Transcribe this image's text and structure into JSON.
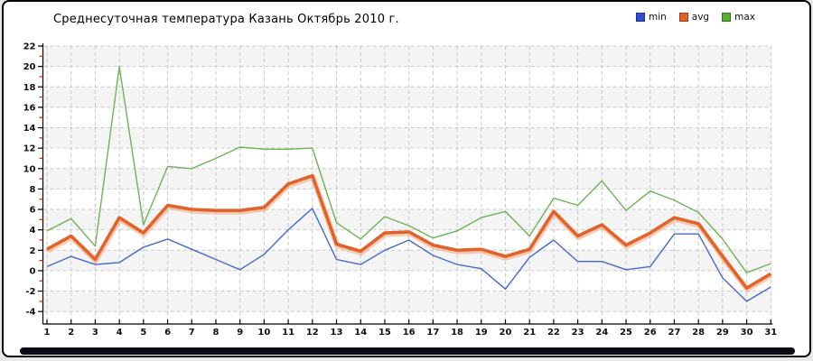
{
  "title": "Среднесуточная температура Казань  Октябрь 2010 г.",
  "legend": [
    {
      "label": "min",
      "color": "#2e4fd1"
    },
    {
      "label": "avg",
      "color": "#e2622b"
    },
    {
      "label": "max",
      "color": "#55ae2e"
    }
  ],
  "style": {
    "band_fill": "#f4f4f4",
    "grid_color": "#c9c9c9",
    "axis_color": "#000000",
    "minor_tick_color": "#cc2222",
    "avg_halo_color": "#f2a679"
  },
  "chart_data": {
    "type": "line",
    "x": [
      1,
      2,
      3,
      4,
      5,
      6,
      7,
      8,
      9,
      10,
      11,
      12,
      13,
      14,
      15,
      16,
      17,
      18,
      19,
      20,
      21,
      22,
      23,
      24,
      25,
      26,
      27,
      28,
      29,
      30,
      31
    ],
    "series": [
      {
        "name": "min",
        "color": "#4668cf",
        "width": 1.4,
        "values": [
          0.4,
          1.4,
          0.6,
          0.8,
          2.3,
          3.1,
          2.1,
          1.1,
          0.1,
          1.6,
          4.0,
          6.1,
          1.1,
          0.6,
          2.0,
          3.0,
          1.5,
          0.6,
          0.2,
          -1.8,
          1.3,
          3.0,
          0.9,
          0.9,
          0.1,
          0.4,
          3.6,
          3.6,
          -0.7,
          -3.0,
          -1.6
        ]
      },
      {
        "name": "avg",
        "color": "#e2622b",
        "width": 3.6,
        "values": [
          2.1,
          3.4,
          1.1,
          5.2,
          3.7,
          6.4,
          6.0,
          5.9,
          5.9,
          6.2,
          8.5,
          9.3,
          2.6,
          1.9,
          3.7,
          3.8,
          2.5,
          2.0,
          2.1,
          1.4,
          2.1,
          5.8,
          3.4,
          4.5,
          2.5,
          3.7,
          5.2,
          4.6,
          1.4,
          -1.7,
          -0.3
        ]
      },
      {
        "name": "max",
        "color": "#6cb453",
        "width": 1.4,
        "values": [
          3.9,
          5.1,
          2.4,
          20.0,
          4.5,
          10.2,
          10.0,
          11.0,
          12.1,
          11.9,
          11.9,
          12.0,
          4.7,
          3.1,
          5.3,
          4.4,
          3.2,
          3.9,
          5.2,
          5.8,
          3.4,
          7.1,
          6.4,
          8.8,
          5.9,
          7.8,
          6.9,
          5.7,
          3.1,
          -0.2,
          0.7
        ]
      }
    ],
    "title": "Среднесуточная температура Казань  Октябрь 2010 г.",
    "xlabel": "",
    "ylabel": "",
    "ylim": [
      -4,
      22
    ],
    "ytick_step": 2,
    "xlim": [
      1,
      31
    ],
    "grid": "on",
    "legend_position": "top-right"
  }
}
